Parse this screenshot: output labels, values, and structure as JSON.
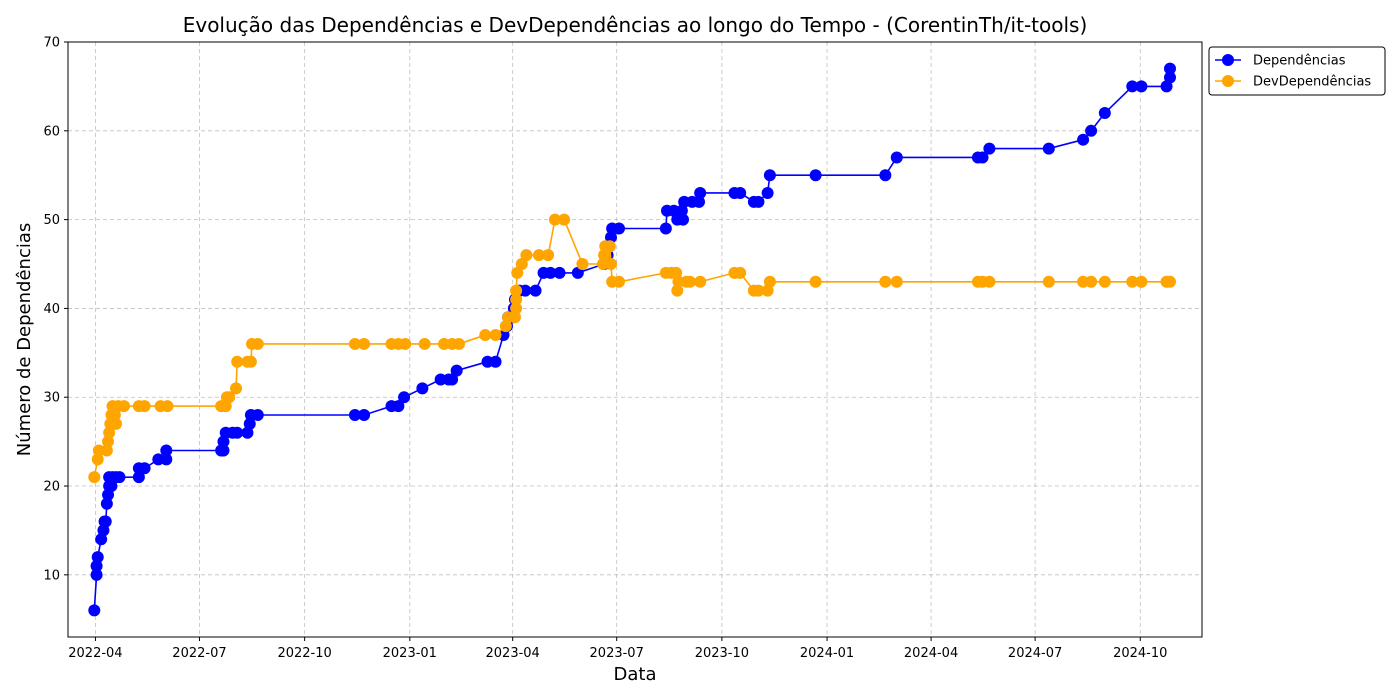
{
  "chart_data": {
    "type": "line",
    "title": "Evolução das Dependências e DevDependências ao longo do Tempo - (CorentinTh/it-tools)",
    "xlabel": "Data",
    "ylabel": "Número de Dependências",
    "xlim": [
      "2022-03-08",
      "2024-11-24"
    ],
    "ylim": [
      3,
      70
    ],
    "x_ticks": [
      "2022-04",
      "2022-07",
      "2022-10",
      "2023-01",
      "2023-04",
      "2023-07",
      "2023-10",
      "2024-01",
      "2024-04",
      "2024-07",
      "2024-10"
    ],
    "y_ticks": [
      10,
      20,
      30,
      40,
      50,
      60,
      70
    ],
    "grid": true,
    "legend_position": "outside-top-right",
    "series": [
      {
        "name": "Dependências",
        "color": "#0000ff",
        "points": [
          [
            "2022-03-31",
            6
          ],
          [
            "2022-04-02",
            10
          ],
          [
            "2022-04-02",
            11
          ],
          [
            "2022-04-03",
            12
          ],
          [
            "2022-04-06",
            14
          ],
          [
            "2022-04-08",
            15
          ],
          [
            "2022-04-09",
            16
          ],
          [
            "2022-04-10",
            16
          ],
          [
            "2022-04-11",
            18
          ],
          [
            "2022-04-12",
            19
          ],
          [
            "2022-04-13",
            20
          ],
          [
            "2022-04-13",
            21
          ],
          [
            "2022-04-15",
            20
          ],
          [
            "2022-04-16",
            21
          ],
          [
            "2022-04-19",
            21
          ],
          [
            "2022-04-22",
            21
          ],
          [
            "2022-05-09",
            21
          ],
          [
            "2022-05-09",
            22
          ],
          [
            "2022-05-14",
            22
          ],
          [
            "2022-05-26",
            23
          ],
          [
            "2022-06-02",
            23
          ],
          [
            "2022-06-02",
            24
          ],
          [
            "2022-07-20",
            24
          ],
          [
            "2022-07-21",
            24
          ],
          [
            "2022-07-22",
            24
          ],
          [
            "2022-07-22",
            25
          ],
          [
            "2022-07-24",
            26
          ],
          [
            "2022-07-30",
            26
          ],
          [
            "2022-08-03",
            26
          ],
          [
            "2022-08-12",
            26
          ],
          [
            "2022-08-14",
            27
          ],
          [
            "2022-08-15",
            28
          ],
          [
            "2022-08-21",
            28
          ],
          [
            "2022-11-14",
            28
          ],
          [
            "2022-11-22",
            28
          ],
          [
            "2022-12-16",
            29
          ],
          [
            "2022-12-22",
            29
          ],
          [
            "2022-12-27",
            30
          ],
          [
            "2023-01-12",
            31
          ],
          [
            "2023-01-28",
            32
          ],
          [
            "2023-02-04",
            32
          ],
          [
            "2023-02-07",
            32
          ],
          [
            "2023-02-11",
            33
          ],
          [
            "2023-03-10",
            34
          ],
          [
            "2023-03-17",
            34
          ],
          [
            "2023-03-24",
            37
          ],
          [
            "2023-03-27",
            38
          ],
          [
            "2023-03-28",
            39
          ],
          [
            "2023-04-01",
            39
          ],
          [
            "2023-04-02",
            40
          ],
          [
            "2023-04-03",
            41
          ],
          [
            "2023-04-07",
            42
          ],
          [
            "2023-04-12",
            42
          ],
          [
            "2023-04-21",
            42
          ],
          [
            "2023-04-28",
            44
          ],
          [
            "2023-05-04",
            44
          ],
          [
            "2023-05-12",
            44
          ],
          [
            "2023-05-28",
            44
          ],
          [
            "2023-06-20",
            45
          ],
          [
            "2023-06-23",
            46
          ],
          [
            "2023-06-24",
            47
          ],
          [
            "2023-06-26",
            48
          ],
          [
            "2023-06-27",
            49
          ],
          [
            "2023-07-03",
            49
          ],
          [
            "2023-08-13",
            49
          ],
          [
            "2023-08-14",
            51
          ],
          [
            "2023-08-20",
            51
          ],
          [
            "2023-08-23",
            50
          ],
          [
            "2023-08-27",
            51
          ],
          [
            "2023-08-28",
            50
          ],
          [
            "2023-08-29",
            52
          ],
          [
            "2023-09-05",
            52
          ],
          [
            "2023-09-11",
            52
          ],
          [
            "2023-09-12",
            53
          ],
          [
            "2023-10-12",
            53
          ],
          [
            "2023-10-17",
            53
          ],
          [
            "2023-10-29",
            52
          ],
          [
            "2023-11-02",
            52
          ],
          [
            "2023-11-10",
            53
          ],
          [
            "2023-11-12",
            55
          ],
          [
            "2023-12-22",
            55
          ],
          [
            "2024-02-21",
            55
          ],
          [
            "2024-03-02",
            57
          ],
          [
            "2024-05-12",
            57
          ],
          [
            "2024-05-16",
            57
          ],
          [
            "2024-05-22",
            58
          ],
          [
            "2024-07-13",
            58
          ],
          [
            "2024-08-12",
            59
          ],
          [
            "2024-08-19",
            60
          ],
          [
            "2024-08-31",
            62
          ],
          [
            "2024-09-24",
            65
          ],
          [
            "2024-10-02",
            65
          ],
          [
            "2024-10-24",
            65
          ],
          [
            "2024-10-27",
            66
          ],
          [
            "2024-10-27",
            67
          ]
        ]
      },
      {
        "name": "DevDependências",
        "color": "#ffa500",
        "points": [
          [
            "2022-03-31",
            21
          ],
          [
            "2022-04-03",
            23
          ],
          [
            "2022-04-04",
            24
          ],
          [
            "2022-04-11",
            24
          ],
          [
            "2022-04-12",
            25
          ],
          [
            "2022-04-13",
            26
          ],
          [
            "2022-04-14",
            27
          ],
          [
            "2022-04-15",
            28
          ],
          [
            "2022-04-16",
            29
          ],
          [
            "2022-04-18",
            28
          ],
          [
            "2022-04-19",
            27
          ],
          [
            "2022-04-21",
            29
          ],
          [
            "2022-04-26",
            29
          ],
          [
            "2022-05-09",
            29
          ],
          [
            "2022-05-14",
            29
          ],
          [
            "2022-05-28",
            29
          ],
          [
            "2022-06-03",
            29
          ],
          [
            "2022-07-20",
            29
          ],
          [
            "2022-07-24",
            29
          ],
          [
            "2022-07-25",
            30
          ],
          [
            "2022-07-27",
            30
          ],
          [
            "2022-08-02",
            31
          ],
          [
            "2022-08-03",
            34
          ],
          [
            "2022-08-12",
            34
          ],
          [
            "2022-08-15",
            34
          ],
          [
            "2022-08-16",
            36
          ],
          [
            "2022-08-21",
            36
          ],
          [
            "2022-11-14",
            36
          ],
          [
            "2022-11-22",
            36
          ],
          [
            "2022-12-16",
            36
          ],
          [
            "2022-12-22",
            36
          ],
          [
            "2022-12-28",
            36
          ],
          [
            "2023-01-14",
            36
          ],
          [
            "2023-01-31",
            36
          ],
          [
            "2023-02-07",
            36
          ],
          [
            "2023-02-13",
            36
          ],
          [
            "2023-03-08",
            37
          ],
          [
            "2023-03-17",
            37
          ],
          [
            "2023-03-26",
            38
          ],
          [
            "2023-03-28",
            39
          ],
          [
            "2023-04-03",
            39
          ],
          [
            "2023-04-04",
            40
          ],
          [
            "2023-04-04",
            41
          ],
          [
            "2023-04-04",
            42
          ],
          [
            "2023-04-05",
            44
          ],
          [
            "2023-04-09",
            45
          ],
          [
            "2023-04-13",
            46
          ],
          [
            "2023-04-24",
            46
          ],
          [
            "2023-05-02",
            46
          ],
          [
            "2023-05-08",
            50
          ],
          [
            "2023-05-16",
            50
          ],
          [
            "2023-06-01",
            45
          ],
          [
            "2023-06-19",
            45
          ],
          [
            "2023-06-20",
            46
          ],
          [
            "2023-06-21",
            47
          ],
          [
            "2023-06-25",
            47
          ],
          [
            "2023-06-26",
            45
          ],
          [
            "2023-06-27",
            43
          ],
          [
            "2023-07-03",
            43
          ],
          [
            "2023-08-13",
            44
          ],
          [
            "2023-08-18",
            44
          ],
          [
            "2023-08-22",
            44
          ],
          [
            "2023-08-23",
            42
          ],
          [
            "2023-08-24",
            43
          ],
          [
            "2023-08-31",
            43
          ],
          [
            "2023-09-03",
            43
          ],
          [
            "2023-09-12",
            43
          ],
          [
            "2023-10-12",
            44
          ],
          [
            "2023-10-17",
            44
          ],
          [
            "2023-10-29",
            42
          ],
          [
            "2023-11-02",
            42
          ],
          [
            "2023-11-10",
            42
          ],
          [
            "2023-11-12",
            43
          ],
          [
            "2023-12-22",
            43
          ],
          [
            "2024-02-21",
            43
          ],
          [
            "2024-03-02",
            43
          ],
          [
            "2024-05-12",
            43
          ],
          [
            "2024-05-16",
            43
          ],
          [
            "2024-05-22",
            43
          ],
          [
            "2024-07-13",
            43
          ],
          [
            "2024-08-12",
            43
          ],
          [
            "2024-08-19",
            43
          ],
          [
            "2024-08-31",
            43
          ],
          [
            "2024-09-24",
            43
          ],
          [
            "2024-10-02",
            43
          ],
          [
            "2024-10-24",
            43
          ],
          [
            "2024-10-27",
            43
          ]
        ]
      }
    ]
  }
}
